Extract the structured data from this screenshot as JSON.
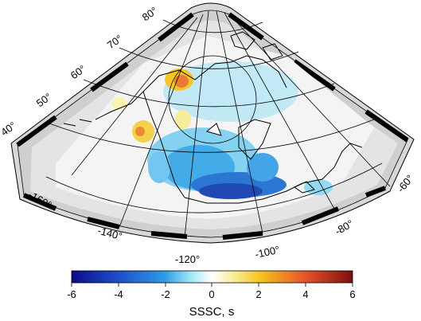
{
  "map": {
    "lat_labels": [
      "40°",
      "50°",
      "60°",
      "70°",
      "80°"
    ],
    "lon_labels_bottom": [
      "-160°",
      "-140°",
      "-120°",
      "-100°",
      "-80°",
      "-60°"
    ]
  },
  "colorbar": {
    "title": "SSSC, s",
    "ticks": [
      "-6",
      "-4",
      "-2",
      "0",
      "2",
      "4",
      "6"
    ],
    "range": [
      -6,
      6
    ],
    "colors": [
      "#0c0c8c",
      "#1f50c8",
      "#2d9ae6",
      "#ffffff",
      "#f5d020",
      "#e8542a",
      "#7a0f0f"
    ]
  }
}
